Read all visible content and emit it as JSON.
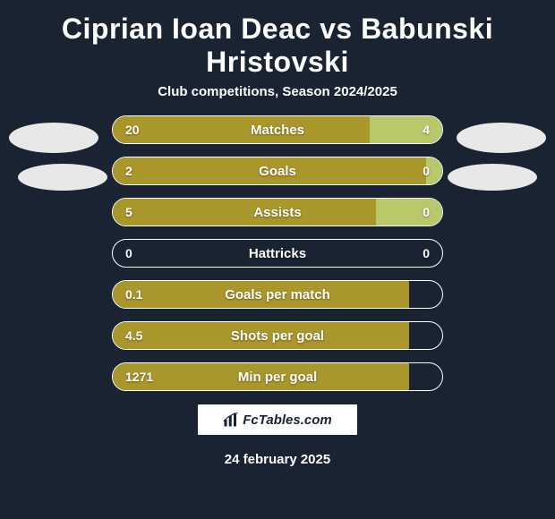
{
  "title": "Ciprian Ioan Deac vs Babunski Hristovski",
  "subtitle": "Club competitions, Season 2024/2025",
  "footer_date": "24 february 2025",
  "logo_text": "FcTables.com",
  "colors": {
    "bg": "#1a2332",
    "bar_left": "#a9972c",
    "bar_right": "#b9c96a",
    "avatar": "#e8e8e8",
    "text": "#ffffff"
  },
  "stats": [
    {
      "label": "Matches",
      "left_val": "20",
      "right_val": "4",
      "left_pct": 78,
      "right_pct": 22,
      "show_right": true
    },
    {
      "label": "Goals",
      "left_val": "2",
      "right_val": "0",
      "left_pct": 95,
      "right_pct": 5,
      "show_right": true
    },
    {
      "label": "Assists",
      "left_val": "5",
      "right_val": "0",
      "left_pct": 80,
      "right_pct": 20,
      "show_right": true
    },
    {
      "label": "Hattricks",
      "left_val": "0",
      "right_val": "0",
      "left_pct": 0,
      "right_pct": 0,
      "show_right": true
    },
    {
      "label": "Goals per match",
      "left_val": "0.1",
      "right_val": "",
      "left_pct": 90,
      "right_pct": 0,
      "show_right": false
    },
    {
      "label": "Shots per goal",
      "left_val": "4.5",
      "right_val": "",
      "left_pct": 90,
      "right_pct": 0,
      "show_right": false
    },
    {
      "label": "Min per goal",
      "left_val": "1271",
      "right_val": "",
      "left_pct": 90,
      "right_pct": 0,
      "show_right": false
    }
  ]
}
